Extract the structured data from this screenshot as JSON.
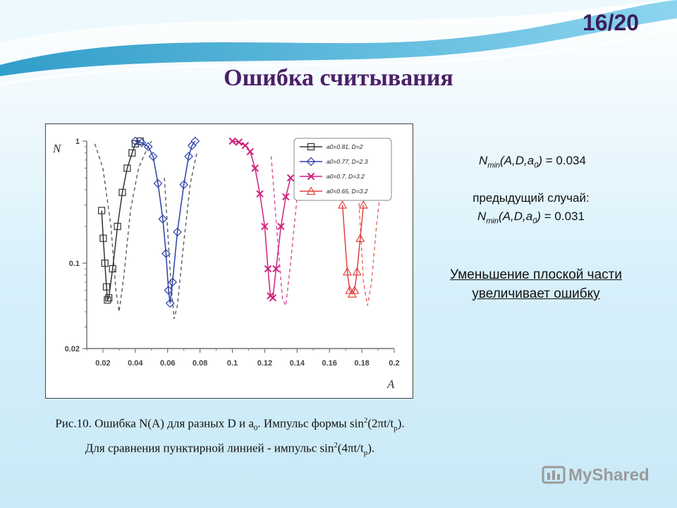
{
  "slide": {
    "number": "16/20",
    "title": "Ошибка считывания"
  },
  "info": {
    "current_value": "= 0.034",
    "previous_label": "предыдущий случай:",
    "previous_value": "= 0.031",
    "note": "Уменьшение плоской части увеличивает ошибку"
  },
  "caption": {
    "part1": "Рис.10. Ошибка N(A) для разных D и a",
    "sub1": "0",
    "part2": ". Импульс формы sin",
    "sup1": "2",
    "part3": "(2πt/t",
    "sub2": "p",
    "part4": "). Для сравнения пунктирной линией - импульс sin",
    "sup2": "2",
    "part5": "(4πt/t",
    "sub3": "p",
    "part6": ")."
  },
  "logo": {
    "text": "MyShared"
  },
  "colors": {
    "title": "#4a2068",
    "black_series": "#333333",
    "blue_series": "#2b3fa8",
    "magenta_series": "#d0217f",
    "red_series": "#e0443f"
  },
  "chart_data": {
    "type": "line",
    "xlabel": "A",
    "ylabel": "N",
    "x_ticks": [
      "0.02",
      "0.04",
      "0.06",
      "0.08",
      "0.1",
      "0.12",
      "0.14",
      "0.16",
      "0.18",
      "0.2"
    ],
    "y_ticks": [
      "1",
      "0.1",
      "0.02"
    ],
    "xlim": [
      0.01,
      0.2
    ],
    "ylim": [
      0.02,
      1
    ],
    "y_scale": "log",
    "legend_placement": "top-right",
    "series": [
      {
        "legend": "a0=0.81, D=2",
        "marker": "square",
        "color": "#333333",
        "x": [
          0.0192,
          0.0202,
          0.0212,
          0.0222,
          0.0228,
          0.0236,
          0.026,
          0.029,
          0.032,
          0.035,
          0.038,
          0.04,
          0.043
        ],
        "y": [
          0.27,
          0.16,
          0.1,
          0.064,
          0.05,
          0.052,
          0.09,
          0.2,
          0.38,
          0.6,
          0.8,
          0.95,
          1.0
        ]
      },
      {
        "legend": "a0=0.77, D=2.3",
        "marker": "diamond",
        "color": "#2b3fa8",
        "x": [
          0.04,
          0.044,
          0.048,
          0.051,
          0.054,
          0.057,
          0.059,
          0.0605,
          0.0615,
          0.063,
          0.066,
          0.07,
          0.073,
          0.075,
          0.077
        ],
        "y": [
          1.0,
          0.97,
          0.9,
          0.75,
          0.45,
          0.23,
          0.12,
          0.06,
          0.047,
          0.07,
          0.18,
          0.44,
          0.75,
          0.92,
          1.0
        ]
      },
      {
        "legend": "a0=0.7, D=3.2",
        "marker": "x",
        "color": "#d0217f",
        "x": [
          0.1,
          0.104,
          0.108,
          0.111,
          0.114,
          0.117,
          0.12,
          0.122,
          0.1235,
          0.125,
          0.127,
          0.13,
          0.133,
          0.136
        ],
        "y": [
          1.0,
          0.98,
          0.92,
          0.82,
          0.6,
          0.37,
          0.2,
          0.09,
          0.054,
          0.052,
          0.09,
          0.2,
          0.35,
          0.5
        ]
      },
      {
        "legend": "a0=0.65, D=3.2",
        "marker": "triangle",
        "color": "#e0443f",
        "x": [
          0.168,
          0.171,
          0.1725,
          0.174,
          0.1755,
          0.177,
          0.179,
          0.181
        ],
        "y": [
          0.3,
          0.085,
          0.06,
          0.056,
          0.06,
          0.085,
          0.16,
          0.3
        ]
      }
    ],
    "comparison_series_dashed": [
      {
        "color": "#333333",
        "x": [
          0.015,
          0.02,
          0.025,
          0.028,
          0.03,
          0.033,
          0.037,
          0.042,
          0.047,
          0.05
        ],
        "y": [
          0.95,
          0.6,
          0.2,
          0.06,
          0.04,
          0.08,
          0.27,
          0.6,
          0.85,
          1.0
        ]
      },
      {
        "color": "#333333",
        "x": [
          0.058,
          0.062,
          0.064,
          0.066,
          0.07,
          0.074,
          0.078
        ],
        "y": [
          0.5,
          0.07,
          0.035,
          0.045,
          0.15,
          0.45,
          0.8
        ]
      },
      {
        "color": "#d0217f",
        "x": [
          0.124,
          0.128,
          0.131,
          0.133,
          0.136,
          0.14,
          0.144
        ],
        "y": [
          0.75,
          0.15,
          0.05,
          0.045,
          0.1,
          0.35,
          0.8
        ]
      },
      {
        "color": "#e0443f",
        "x": [
          0.178,
          0.181,
          0.1835,
          0.186,
          0.189,
          0.192
        ],
        "y": [
          0.35,
          0.07,
          0.045,
          0.07,
          0.2,
          0.45
        ]
      }
    ]
  }
}
